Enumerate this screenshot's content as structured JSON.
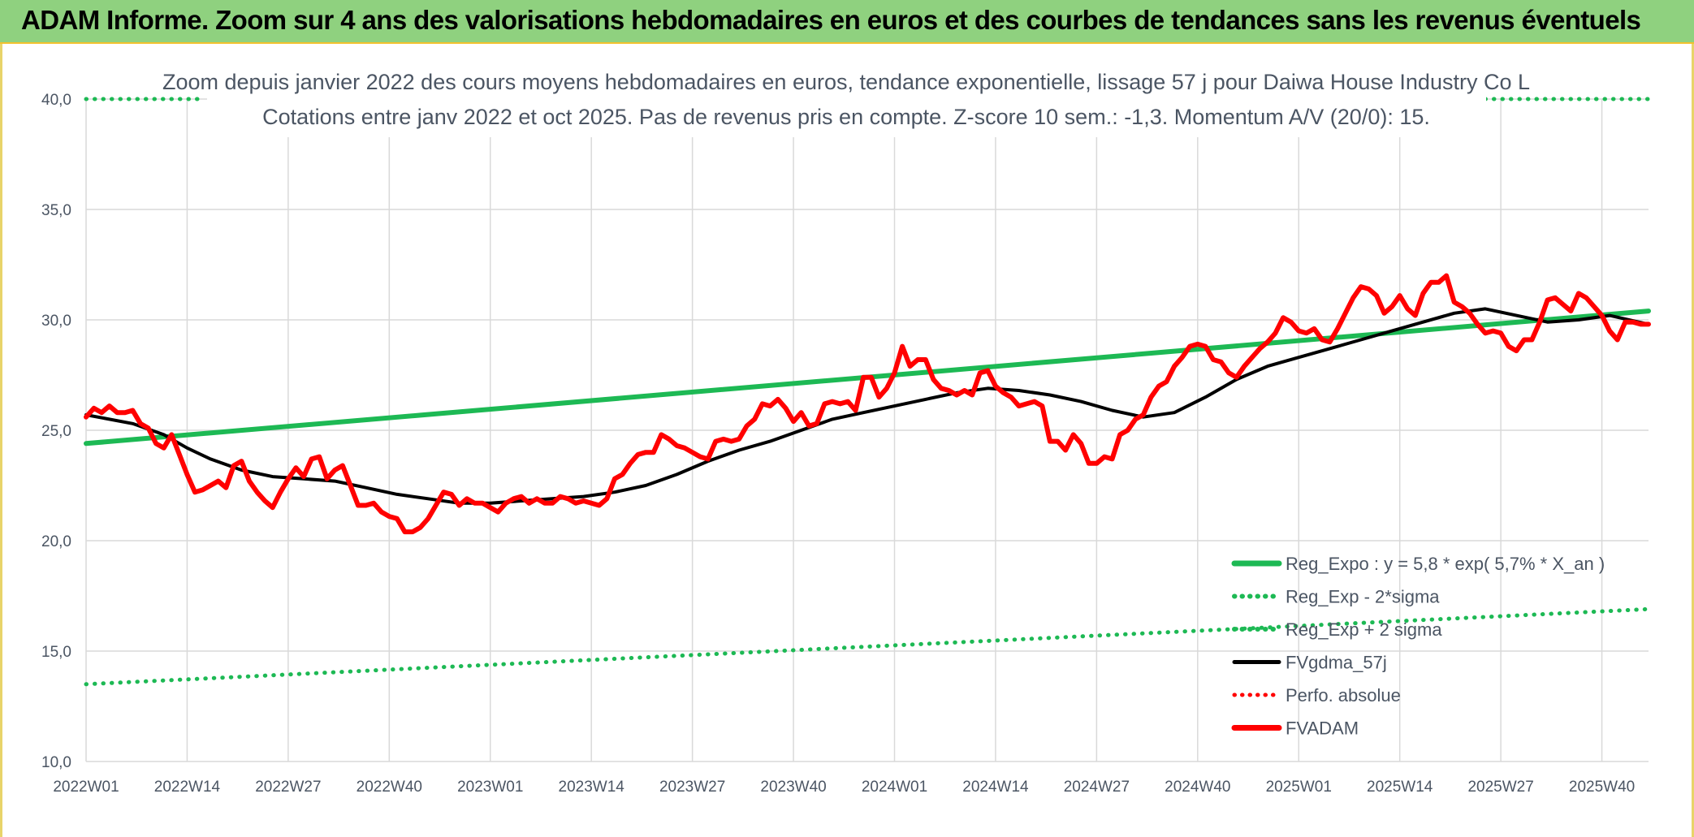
{
  "header": {
    "title": "ADAM Informe. Zoom sur 4 ans des valorisations hebdomadaires en euros et des courbes de tendances sans les revenus éventuels"
  },
  "colors": {
    "banner": "#8fd17f",
    "green": "#1db954",
    "black": "#000000",
    "red": "#ff0000",
    "grid": "#d9d9d9"
  },
  "chart_data": {
    "type": "line",
    "title": [
      "Zoom depuis janvier 2022 des cours moyens hebdomadaires en euros, tendance exponentielle, lissage 57 j pour Daiwa House Industry Co L",
      "Cotations entre janv 2022 et oct 2025. Pas de revenus pris en compte. Z-score 10 sem.: -1,3. Momentum A/V (20/0): 15."
    ],
    "xlabel": "",
    "ylabel": "",
    "ylim": [
      10,
      40
    ],
    "yticks": [
      "10,0",
      "15,0",
      "20,0",
      "25,0",
      "30,0",
      "35,0",
      "40,0"
    ],
    "ytick_values": [
      10,
      15,
      20,
      25,
      30,
      35,
      40
    ],
    "xticks": [
      "2022W01",
      "2022W14",
      "2022W27",
      "2022W40",
      "2023W01",
      "2023W14",
      "2023W27",
      "2023W40",
      "2024W01",
      "2024W14",
      "2024W27",
      "2024W40",
      "2025W01",
      "2025W14",
      "2025W27",
      "2025W40"
    ],
    "x_range_weeks": [
      0,
      201
    ],
    "grid": true,
    "legend_position": "bottom-right",
    "series": [
      {
        "name": "Reg_Expo : y = 5,8 * exp( 5,7% *  X_an )",
        "style": "solid",
        "color": "#1db954",
        "width": 6,
        "points": [
          [
            0,
            24.4
          ],
          [
            201,
            30.4
          ]
        ]
      },
      {
        "name": "Reg_Exp - 2*sigma",
        "style": "dotted",
        "color": "#1db954",
        "width": 5,
        "points": [
          [
            0,
            13.5
          ],
          [
            201,
            16.9
          ]
        ]
      },
      {
        "name": "Reg_Exp + 2 sigma",
        "style": "dotted",
        "color": "#1db954",
        "width": 5,
        "points": [
          [
            0,
            40.0
          ],
          [
            15,
            40.0
          ],
          [
            180,
            40.0
          ],
          [
            201,
            40.0
          ]
        ]
      },
      {
        "name": "FVgdma_57j",
        "style": "solid",
        "color": "#000000",
        "width": 4,
        "points": [
          [
            0,
            25.7
          ],
          [
            6,
            25.3
          ],
          [
            10,
            24.8
          ],
          [
            13,
            24.2
          ],
          [
            16,
            23.7
          ],
          [
            20,
            23.2
          ],
          [
            24,
            22.9
          ],
          [
            28,
            22.8
          ],
          [
            32,
            22.7
          ],
          [
            36,
            22.4
          ],
          [
            40,
            22.1
          ],
          [
            44,
            21.9
          ],
          [
            48,
            21.7
          ],
          [
            52,
            21.7
          ],
          [
            56,
            21.8
          ],
          [
            60,
            21.9
          ],
          [
            64,
            22.0
          ],
          [
            68,
            22.2
          ],
          [
            72,
            22.5
          ],
          [
            76,
            23.0
          ],
          [
            80,
            23.6
          ],
          [
            84,
            24.1
          ],
          [
            88,
            24.5
          ],
          [
            92,
            25.0
          ],
          [
            96,
            25.5
          ],
          [
            100,
            25.8
          ],
          [
            104,
            26.1
          ],
          [
            108,
            26.4
          ],
          [
            112,
            26.7
          ],
          [
            116,
            26.9
          ],
          [
            120,
            26.8
          ],
          [
            124,
            26.6
          ],
          [
            128,
            26.3
          ],
          [
            132,
            25.9
          ],
          [
            136,
            25.6
          ],
          [
            140,
            25.8
          ],
          [
            144,
            26.5
          ],
          [
            148,
            27.3
          ],
          [
            152,
            27.9
          ],
          [
            156,
            28.3
          ],
          [
            160,
            28.7
          ],
          [
            164,
            29.1
          ],
          [
            168,
            29.5
          ],
          [
            172,
            29.9
          ],
          [
            176,
            30.3
          ],
          [
            180,
            30.5
          ],
          [
            184,
            30.2
          ],
          [
            188,
            29.9
          ],
          [
            192,
            30.0
          ],
          [
            196,
            30.2
          ],
          [
            201,
            29.8
          ]
        ]
      },
      {
        "name": "Perfo. absolue",
        "style": "dotted",
        "color": "#ff0000",
        "width": 4,
        "points": []
      },
      {
        "name": "FVADAM",
        "style": "solid",
        "color": "#ff0000",
        "width": 6,
        "points": [
          [
            0,
            25.6
          ],
          [
            1,
            26.0
          ],
          [
            2,
            25.8
          ],
          [
            3,
            26.1
          ],
          [
            4,
            25.8
          ],
          [
            5,
            25.8
          ],
          [
            6,
            25.9
          ],
          [
            7,
            25.3
          ],
          [
            8,
            25.1
          ],
          [
            9,
            24.4
          ],
          [
            10,
            24.2
          ],
          [
            11,
            24.8
          ],
          [
            12,
            23.9
          ],
          [
            13,
            23.0
          ],
          [
            14,
            22.2
          ],
          [
            15,
            22.3
          ],
          [
            16,
            22.5
          ],
          [
            17,
            22.7
          ],
          [
            18,
            22.4
          ],
          [
            19,
            23.4
          ],
          [
            20,
            23.6
          ],
          [
            21,
            22.7
          ],
          [
            22,
            22.2
          ],
          [
            23,
            21.8
          ],
          [
            24,
            21.5
          ],
          [
            25,
            22.2
          ],
          [
            26,
            22.8
          ],
          [
            27,
            23.3
          ],
          [
            28,
            22.9
          ],
          [
            29,
            23.7
          ],
          [
            30,
            23.8
          ],
          [
            31,
            22.8
          ],
          [
            32,
            23.2
          ],
          [
            33,
            23.4
          ],
          [
            34,
            22.5
          ],
          [
            35,
            21.6
          ],
          [
            36,
            21.6
          ],
          [
            37,
            21.7
          ],
          [
            38,
            21.3
          ],
          [
            39,
            21.1
          ],
          [
            40,
            21.0
          ],
          [
            41,
            20.4
          ],
          [
            42,
            20.4
          ],
          [
            43,
            20.6
          ],
          [
            44,
            21.0
          ],
          [
            45,
            21.6
          ],
          [
            46,
            22.2
          ],
          [
            47,
            22.1
          ],
          [
            48,
            21.6
          ],
          [
            49,
            21.9
          ],
          [
            50,
            21.7
          ],
          [
            51,
            21.7
          ],
          [
            52,
            21.5
          ],
          [
            53,
            21.3
          ],
          [
            54,
            21.7
          ],
          [
            55,
            21.9
          ],
          [
            56,
            22.0
          ],
          [
            57,
            21.7
          ],
          [
            58,
            21.9
          ],
          [
            59,
            21.7
          ],
          [
            60,
            21.7
          ],
          [
            61,
            22.0
          ],
          [
            62,
            21.9
          ],
          [
            63,
            21.7
          ],
          [
            64,
            21.8
          ],
          [
            65,
            21.7
          ],
          [
            66,
            21.6
          ],
          [
            67,
            21.9
          ],
          [
            68,
            22.8
          ],
          [
            69,
            23.0
          ],
          [
            70,
            23.5
          ],
          [
            71,
            23.9
          ],
          [
            72,
            24.0
          ],
          [
            73,
            24.0
          ],
          [
            74,
            24.8
          ],
          [
            75,
            24.6
          ],
          [
            76,
            24.3
          ],
          [
            77,
            24.2
          ],
          [
            78,
            24.0
          ],
          [
            79,
            23.8
          ],
          [
            80,
            23.7
          ],
          [
            81,
            24.5
          ],
          [
            82,
            24.6
          ],
          [
            83,
            24.5
          ],
          [
            84,
            24.6
          ],
          [
            85,
            25.2
          ],
          [
            86,
            25.5
          ],
          [
            87,
            26.2
          ],
          [
            88,
            26.1
          ],
          [
            89,
            26.4
          ],
          [
            90,
            26.0
          ],
          [
            91,
            25.4
          ],
          [
            92,
            25.8
          ],
          [
            93,
            25.2
          ],
          [
            94,
            25.3
          ],
          [
            95,
            26.2
          ],
          [
            96,
            26.3
          ],
          [
            97,
            26.2
          ],
          [
            98,
            26.3
          ],
          [
            99,
            25.9
          ],
          [
            100,
            27.4
          ],
          [
            101,
            27.4
          ],
          [
            102,
            26.5
          ],
          [
            103,
            26.9
          ],
          [
            104,
            27.6
          ],
          [
            105,
            28.8
          ],
          [
            106,
            27.9
          ],
          [
            107,
            28.2
          ],
          [
            108,
            28.2
          ],
          [
            109,
            27.3
          ],
          [
            110,
            26.9
          ],
          [
            111,
            26.8
          ],
          [
            112,
            26.6
          ],
          [
            113,
            26.8
          ],
          [
            114,
            26.6
          ],
          [
            115,
            27.6
          ],
          [
            116,
            27.7
          ],
          [
            117,
            27.0
          ],
          [
            118,
            26.7
          ],
          [
            119,
            26.5
          ],
          [
            120,
            26.1
          ],
          [
            121,
            26.2
          ],
          [
            122,
            26.3
          ],
          [
            123,
            26.1
          ],
          [
            124,
            24.5
          ],
          [
            125,
            24.5
          ],
          [
            126,
            24.1
          ],
          [
            127,
            24.8
          ],
          [
            128,
            24.4
          ],
          [
            129,
            23.5
          ],
          [
            130,
            23.5
          ],
          [
            131,
            23.8
          ],
          [
            132,
            23.7
          ],
          [
            133,
            24.8
          ],
          [
            134,
            25.0
          ],
          [
            135,
            25.5
          ],
          [
            136,
            25.7
          ],
          [
            137,
            26.5
          ],
          [
            138,
            27.0
          ],
          [
            139,
            27.2
          ],
          [
            140,
            27.9
          ],
          [
            141,
            28.3
          ],
          [
            142,
            28.8
          ],
          [
            143,
            28.9
          ],
          [
            144,
            28.8
          ],
          [
            145,
            28.2
          ],
          [
            146,
            28.1
          ],
          [
            147,
            27.6
          ],
          [
            148,
            27.4
          ],
          [
            149,
            27.9
          ],
          [
            150,
            28.3
          ],
          [
            151,
            28.7
          ],
          [
            152,
            29.0
          ],
          [
            153,
            29.4
          ],
          [
            154,
            30.1
          ],
          [
            155,
            29.9
          ],
          [
            156,
            29.5
          ],
          [
            157,
            29.4
          ],
          [
            158,
            29.6
          ],
          [
            159,
            29.1
          ],
          [
            160,
            29.0
          ],
          [
            161,
            29.6
          ],
          [
            162,
            30.3
          ],
          [
            163,
            31.0
          ],
          [
            164,
            31.5
          ],
          [
            165,
            31.4
          ],
          [
            166,
            31.1
          ],
          [
            167,
            30.3
          ],
          [
            168,
            30.6
          ],
          [
            169,
            31.1
          ],
          [
            170,
            30.5
          ],
          [
            171,
            30.2
          ],
          [
            172,
            31.2
          ],
          [
            173,
            31.7
          ],
          [
            174,
            31.7
          ],
          [
            175,
            32.0
          ],
          [
            176,
            30.8
          ],
          [
            177,
            30.6
          ],
          [
            178,
            30.3
          ],
          [
            179,
            29.8
          ],
          [
            180,
            29.4
          ],
          [
            181,
            29.5
          ],
          [
            182,
            29.4
          ],
          [
            183,
            28.8
          ],
          [
            184,
            28.6
          ],
          [
            185,
            29.1
          ],
          [
            186,
            29.1
          ],
          [
            187,
            29.9
          ],
          [
            188,
            30.9
          ],
          [
            189,
            31.0
          ],
          [
            190,
            30.7
          ],
          [
            191,
            30.4
          ],
          [
            192,
            31.2
          ],
          [
            193,
            31.0
          ],
          [
            194,
            30.6
          ],
          [
            195,
            30.2
          ],
          [
            196,
            29.5
          ],
          [
            197,
            29.1
          ],
          [
            198,
            29.9
          ],
          [
            199,
            29.9
          ],
          [
            200,
            29.8
          ],
          [
            201,
            29.8
          ]
        ]
      }
    ]
  }
}
